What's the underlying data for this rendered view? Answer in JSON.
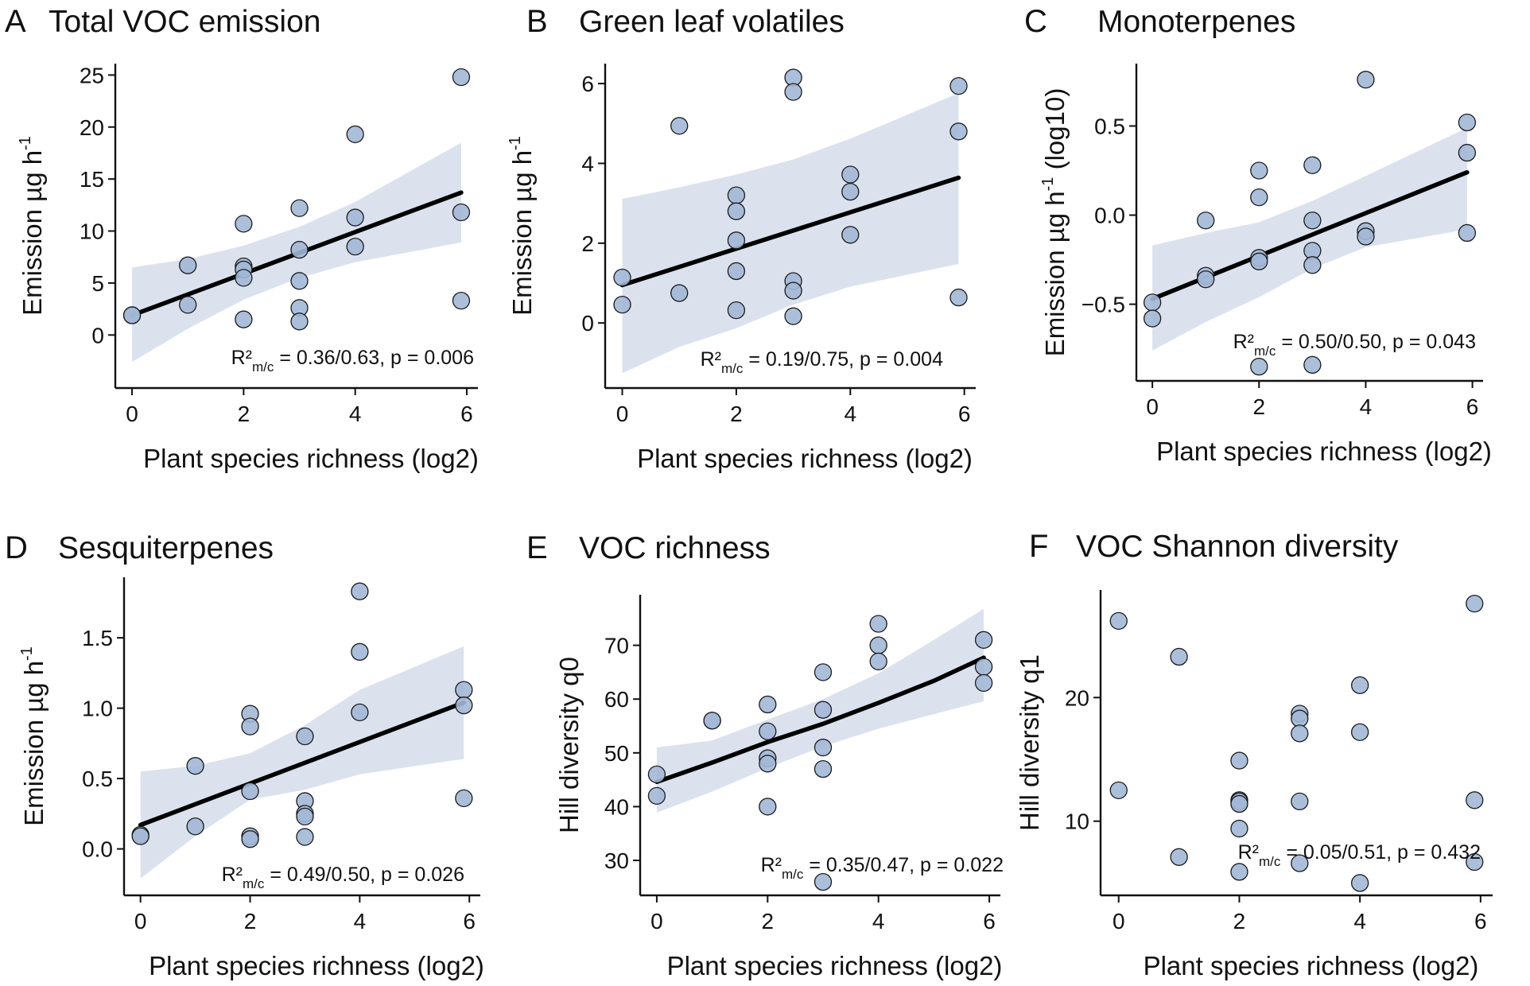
{
  "colors": {
    "point_fill": "#a2b8d6",
    "point_stroke": "#1a1a1a",
    "band": "#dbe2ee",
    "fit_line": "#000000"
  },
  "chart_data": [
    {
      "type": "scatter",
      "panel": "A",
      "title": "Total VOC emission",
      "xlabel": "Plant species richness (log2)",
      "ylabel": {
        "main": "Emission µg h",
        "sup": "-1",
        "suffix": ""
      },
      "xlim": [
        -0.3,
        6.2
      ],
      "ylim": [
        -5.1,
        26.1
      ],
      "xticks": [
        0,
        2,
        4,
        6
      ],
      "xtick_labels": [
        "0",
        "2",
        "4",
        "6"
      ],
      "yticks": [
        0,
        5,
        10,
        15,
        20,
        25
      ],
      "ytick_labels": [
        "0",
        "5",
        "10",
        "15",
        "20",
        "25"
      ],
      "points": [
        [
          0,
          1.9
        ],
        [
          0,
          1.9
        ],
        [
          1,
          6.7
        ],
        [
          1,
          2.9
        ],
        [
          2,
          10.7
        ],
        [
          2,
          6.6
        ],
        [
          2,
          6.3
        ],
        [
          2,
          5.5
        ],
        [
          2,
          1.5
        ],
        [
          3,
          12.2
        ],
        [
          3,
          8.2
        ],
        [
          3,
          5.2
        ],
        [
          3,
          2.6
        ],
        [
          3,
          1.3
        ],
        [
          4,
          19.3
        ],
        [
          4,
          11.3
        ],
        [
          4,
          8.5
        ],
        [
          5.9,
          24.8
        ],
        [
          5.9,
          11.8
        ],
        [
          5.9,
          3.3
        ]
      ],
      "fit": {
        "x": [
          0,
          5.9
        ],
        "y": [
          1.9,
          13.7
        ]
      },
      "ci_band": {
        "x": [
          0,
          1,
          2,
          3,
          4,
          5,
          5.9
        ],
        "lower": [
          -2.6,
          0.6,
          3.4,
          5.5,
          7.0,
          8.0,
          8.9
        ],
        "upper": [
          6.5,
          7.3,
          8.6,
          10.4,
          12.8,
          15.8,
          18.5
        ]
      },
      "annotation": {
        "r2": "R²",
        "sub": "m/c",
        "text": " = 0.36/0.63, p = 0.006"
      },
      "grid": false
    },
    {
      "type": "scatter",
      "panel": "B",
      "title": "Green leaf volatiles",
      "xlabel": "Plant species richness (log2)",
      "ylabel": {
        "main": "Emission µg h",
        "sup": "-1",
        "suffix": ""
      },
      "xlim": [
        -0.3,
        6.2
      ],
      "ylim": [
        -1.63,
        6.5
      ],
      "xticks": [
        0,
        2,
        4,
        6
      ],
      "xtick_labels": [
        "0",
        "2",
        "4",
        "6"
      ],
      "yticks": [
        0,
        2,
        4,
        6
      ],
      "ytick_labels": [
        "0",
        "2",
        "4",
        "6"
      ],
      "points": [
        [
          0,
          1.14
        ],
        [
          0,
          0.46
        ],
        [
          1,
          4.94
        ],
        [
          1,
          0.75
        ],
        [
          2,
          3.2
        ],
        [
          2,
          2.8
        ],
        [
          2,
          2.07
        ],
        [
          2,
          1.3
        ],
        [
          2,
          0.32
        ],
        [
          3,
          6.15
        ],
        [
          3,
          5.79
        ],
        [
          3,
          1.05
        ],
        [
          3,
          0.81
        ],
        [
          3,
          0.17
        ],
        [
          4,
          3.72
        ],
        [
          4,
          3.29
        ],
        [
          4,
          2.21
        ],
        [
          5.9,
          5.94
        ],
        [
          5.9,
          4.8
        ],
        [
          5.9,
          0.64
        ]
      ],
      "fit": {
        "x": [
          0,
          5.9
        ],
        "y": [
          0.95,
          3.64
        ]
      },
      "ci_band": {
        "x": [
          0,
          1,
          2,
          3,
          4,
          5.9
        ],
        "lower": [
          -1.26,
          -0.6,
          -0.13,
          0.46,
          0.91,
          1.48
        ],
        "upper": [
          3.11,
          3.4,
          3.72,
          4.1,
          4.62,
          5.76
        ]
      },
      "annotation": {
        "r2": "R²",
        "sub": "m/c",
        "text": " = 0.19/0.75, p = 0.004"
      },
      "grid": false
    },
    {
      "type": "scatter",
      "panel": "C",
      "title": "Monoterpenes",
      "xlabel": "Plant species richness (log2)",
      "ylabel": {
        "main": "Emission µg h",
        "sup": "-1",
        "suffix": " (log10)"
      },
      "xlim": [
        -0.3,
        6.2
      ],
      "ylim": [
        -0.93,
        0.85
      ],
      "xticks": [
        0,
        2,
        4,
        6
      ],
      "xtick_labels": [
        "0",
        "2",
        "4",
        "6"
      ],
      "yticks": [
        -0.5,
        0,
        0.5
      ],
      "ytick_labels": [
        "−0.5",
        "0.0",
        "0.5"
      ],
      "points": [
        [
          0,
          -0.49
        ],
        [
          0,
          -0.58
        ],
        [
          1,
          -0.03
        ],
        [
          1,
          -0.34
        ],
        [
          1,
          -0.36
        ],
        [
          2,
          0.25
        ],
        [
          2,
          0.1
        ],
        [
          2,
          -0.24
        ],
        [
          2,
          -0.26
        ],
        [
          2,
          -0.85
        ],
        [
          3,
          0.28
        ],
        [
          3,
          -0.03
        ],
        [
          3,
          -0.2
        ],
        [
          3,
          -0.28
        ],
        [
          3,
          -0.84
        ],
        [
          4,
          0.76
        ],
        [
          4,
          -0.09
        ],
        [
          4,
          -0.12
        ],
        [
          5.9,
          0.52
        ],
        [
          5.9,
          0.35
        ],
        [
          5.9,
          -0.1
        ]
      ],
      "fit": {
        "x": [
          0,
          5.9
        ],
        "y": [
          -0.47,
          0.24
        ]
      },
      "ci_band": {
        "x": [
          0,
          1,
          2,
          3,
          4,
          5.9
        ],
        "lower": [
          -0.76,
          -0.6,
          -0.46,
          -0.3,
          -0.18,
          -0.08
        ],
        "upper": [
          -0.17,
          -0.1,
          -0.04,
          0.08,
          0.22,
          0.49
        ]
      },
      "annotation": {
        "r2": "R²",
        "sub": "m/c",
        "text": " = 0.50/0.50, p = 0.043"
      },
      "grid": false
    },
    {
      "type": "scatter",
      "panel": "D",
      "title": "Sesquiterpenes",
      "xlabel": "Plant species richness (log2)",
      "ylabel": {
        "main": "Emission µg h",
        "sup": "-1",
        "suffix": ""
      },
      "xlim": [
        -0.3,
        6.2
      ],
      "ylim": [
        -0.33,
        1.93
      ],
      "xticks": [
        0,
        2,
        4,
        6
      ],
      "xtick_labels": [
        "0",
        "2",
        "4",
        "6"
      ],
      "yticks": [
        0,
        0.5,
        1,
        1.5
      ],
      "ytick_labels": [
        "0.0",
        "0.5",
        "1.0",
        "1.5"
      ],
      "points": [
        [
          0,
          0.1
        ],
        [
          0,
          0.09
        ],
        [
          1,
          0.59
        ],
        [
          1,
          0.16
        ],
        [
          2,
          0.96
        ],
        [
          2,
          0.87
        ],
        [
          2,
          0.41
        ],
        [
          2,
          0.09
        ],
        [
          2,
          0.07
        ],
        [
          3,
          0.8
        ],
        [
          3,
          0.34
        ],
        [
          3,
          0.25
        ],
        [
          3,
          0.23
        ],
        [
          3,
          0.085
        ],
        [
          4,
          1.83
        ],
        [
          4,
          1.4
        ],
        [
          4,
          0.97
        ],
        [
          5.9,
          1.13
        ],
        [
          5.9,
          1.02
        ],
        [
          5.9,
          0.36
        ]
      ],
      "fit": {
        "x": [
          0,
          5.9
        ],
        "y": [
          0.17,
          1.04
        ]
      },
      "ci_band": {
        "x": [
          0,
          1,
          2,
          3,
          4,
          5.9
        ],
        "lower": [
          -0.21,
          0.09,
          0.35,
          0.42,
          0.53,
          0.64
        ],
        "upper": [
          0.55,
          0.59,
          0.68,
          0.88,
          1.13,
          1.44
        ]
      },
      "annotation": {
        "r2": "R²",
        "sub": "m/c",
        "text": " = 0.49/0.50, p = 0.026"
      },
      "grid": false
    },
    {
      "type": "scatter",
      "panel": "E",
      "title": "VOC richness",
      "xlabel": "Plant species richness (log2)",
      "ylabel": {
        "main": "Hill diversity q0",
        "sup": "",
        "suffix": ""
      },
      "xlim": [
        -0.3,
        6.2
      ],
      "ylim": [
        23.5,
        79.4
      ],
      "xticks": [
        0,
        2,
        4,
        6
      ],
      "xtick_labels": [
        "0",
        "2",
        "4",
        "6"
      ],
      "yticks": [
        30,
        40,
        50,
        60,
        70
      ],
      "ytick_labels": [
        "30",
        "40",
        "50",
        "60",
        "70"
      ],
      "points": [
        [
          0,
          46
        ],
        [
          0,
          42
        ],
        [
          1,
          56
        ],
        [
          1,
          56
        ],
        [
          2,
          59
        ],
        [
          2,
          54
        ],
        [
          2,
          49
        ],
        [
          2,
          48
        ],
        [
          2,
          40
        ],
        [
          3,
          65
        ],
        [
          3,
          58
        ],
        [
          3,
          51
        ],
        [
          3,
          47
        ],
        [
          3,
          26
        ],
        [
          4,
          74
        ],
        [
          4,
          70
        ],
        [
          4,
          67
        ],
        [
          5.9,
          71
        ],
        [
          5.9,
          66
        ],
        [
          5.9,
          63
        ]
      ],
      "fit": {
        "x": [
          0,
          1,
          2,
          3,
          4,
          5,
          5.9
        ],
        "y": [
          44.6,
          48.2,
          52.0,
          55.4,
          59.3,
          63.4,
          67.7
        ]
      },
      "ci_band": {
        "x": [
          0,
          1,
          2,
          3,
          4,
          5,
          5.9
        ],
        "lower": [
          38.9,
          42.8,
          47.2,
          51.2,
          54.5,
          57.2,
          59.6
        ],
        "upper": [
          51.0,
          52.3,
          56.2,
          60.0,
          64.8,
          71.0,
          76.8
        ]
      },
      "annotation": {
        "r2": "R²",
        "sub": "m/c",
        "text": " = 0.35/0.47, p = 0.022"
      },
      "grid": false
    },
    {
      "type": "scatter",
      "panel": "F",
      "title": "VOC Shannon diversity",
      "xlabel": "Plant species richness (log2)",
      "ylabel": {
        "main": "Hill diversity q1",
        "sup": "",
        "suffix": ""
      },
      "xlim": [
        -0.3,
        6.2
      ],
      "ylim": [
        4.0,
        28.7
      ],
      "xticks": [
        0,
        2,
        4,
        6
      ],
      "xtick_labels": [
        "0",
        "2",
        "4",
        "6"
      ],
      "yticks": [
        10,
        20
      ],
      "ytick_labels": [
        "10",
        "20"
      ],
      "points": [
        [
          0,
          26.2
        ],
        [
          0,
          12.5
        ],
        [
          1,
          23.3
        ],
        [
          1,
          7.1
        ],
        [
          2,
          14.9
        ],
        [
          2,
          11.7
        ],
        [
          2,
          11.6
        ],
        [
          2,
          11.4
        ],
        [
          2,
          9.4
        ],
        [
          2,
          5.9
        ],
        [
          3,
          18.7
        ],
        [
          3,
          18.3
        ],
        [
          3,
          17.1
        ],
        [
          3,
          11.6
        ],
        [
          3,
          6.6
        ],
        [
          4,
          21.0
        ],
        [
          4,
          17.2
        ],
        [
          4,
          5.0
        ],
        [
          5.9,
          27.6
        ],
        [
          5.9,
          11.7
        ],
        [
          5.9,
          6.7
        ]
      ],
      "fit": null,
      "ci_band": null,
      "annotation": {
        "r2": "R²",
        "sub": "m/c",
        "text": " = 0.05/0.51, p = 0.432"
      },
      "grid": false
    }
  ]
}
